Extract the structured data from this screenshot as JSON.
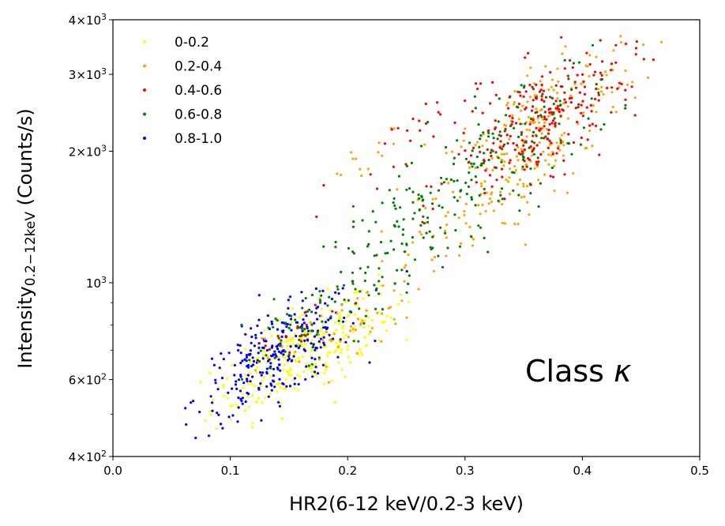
{
  "chart_data": {
    "type": "scatter",
    "title": "",
    "xlabel": "HR2(6-12 keV/0.2-3 keV)",
    "ylabel_main": "Intensity",
    "ylabel_sub": "0.2−12keV",
    "ylabel_unit": " (Counts/s)",
    "xlim": [
      0.0,
      0.5
    ],
    "ylim": [
      400,
      4000
    ],
    "yscale": "log",
    "grid": false,
    "x_ticks": [
      "0.0",
      "0.1",
      "0.2",
      "0.3",
      "0.4",
      "0.5"
    ],
    "x_tick_values": [
      0.0,
      0.1,
      0.2,
      0.3,
      0.4,
      0.5
    ],
    "y_tick_values": [
      400,
      600,
      1000,
      2000,
      3000,
      4000
    ],
    "y_ticks": [
      {
        "base": "4",
        "mult": "×10",
        "exp": "2"
      },
      {
        "base": "6",
        "mult": "×10",
        "exp": "2"
      },
      {
        "base": "10",
        "mult": "",
        "exp": "3"
      },
      {
        "base": "2",
        "mult": "×10",
        "exp": "3"
      },
      {
        "base": "3",
        "mult": "×10",
        "exp": "3"
      },
      {
        "base": "4",
        "mult": "×10",
        "exp": "3"
      }
    ],
    "legend_position": "top-left",
    "annotation": {
      "text": "Class ",
      "symbol": "κ",
      "position": "lower-right"
    },
    "series": [
      {
        "name": "0-0.2",
        "color": "#ffff00",
        "cluster": {
          "x_range": [
            0.08,
            0.26
          ],
          "y_range": [
            450,
            900
          ],
          "approx_count": 250
        }
      },
      {
        "name": "0.2-0.4",
        "color": "#ffa500",
        "cluster": {
          "x_range": [
            0.13,
            0.46
          ],
          "y_range": [
            580,
            3300
          ],
          "approx_count": 300
        }
      },
      {
        "name": "0.4-0.6",
        "color": "#ff0000",
        "cluster": {
          "x_range": [
            0.15,
            0.47
          ],
          "y_range": [
            1000,
            3700
          ],
          "approx_count": 280
        }
      },
      {
        "name": "0.6-0.8",
        "color": "#008000",
        "cluster": {
          "x_range": [
            0.1,
            0.44
          ],
          "y_range": [
            600,
            3000
          ],
          "approx_count": 300
        }
      },
      {
        "name": "0.8-1.0",
        "color": "#0000ff",
        "cluster": {
          "x_range": [
            0.06,
            0.23
          ],
          "y_range": [
            460,
            900
          ],
          "approx_count": 280
        }
      }
    ]
  }
}
